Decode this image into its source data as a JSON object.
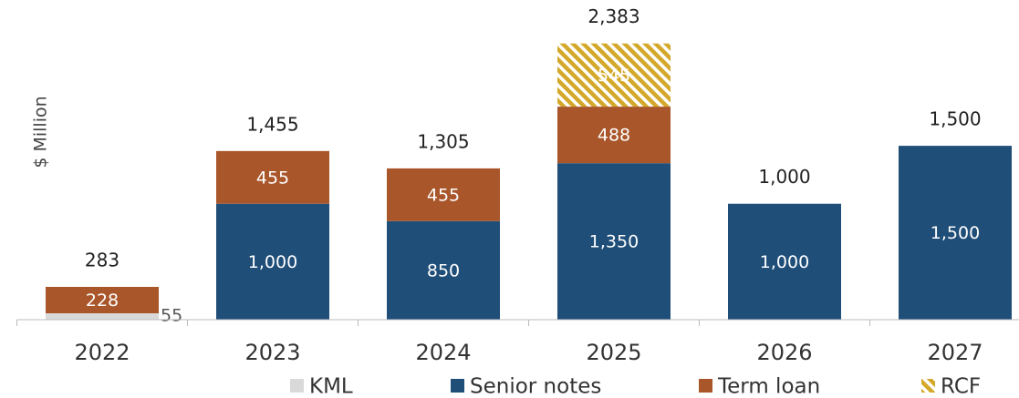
{
  "chart_data": {
    "type": "stacked_bar",
    "ylabel": "$ Million",
    "categories": [
      "2022",
      "2023",
      "2024",
      "2025",
      "2026",
      "2027"
    ],
    "series": [
      {
        "name": "KML",
        "color": "#d9d9d9",
        "values": [
          55,
          null,
          null,
          null,
          null,
          null
        ],
        "value_labels": [
          "55",
          null,
          null,
          null,
          null,
          null
        ],
        "label_position": "outside"
      },
      {
        "name": "Senior notes",
        "color": "#1f4e79",
        "values": [
          null,
          1000,
          850,
          1350,
          1000,
          1500
        ],
        "value_labels": [
          null,
          "1,000",
          "850",
          "1,350",
          "1,000",
          "1,500"
        ]
      },
      {
        "name": "Term loan",
        "color": "#a9562a",
        "values": [
          228,
          455,
          455,
          488,
          null,
          null
        ],
        "value_labels": [
          "228",
          "455",
          "455",
          "488",
          null,
          null
        ]
      },
      {
        "name": "RCF",
        "color": "#d4a82a",
        "pattern": "hatch",
        "values": [
          null,
          null,
          null,
          545,
          null,
          null
        ],
        "value_labels": [
          null,
          null,
          null,
          "545",
          null,
          null
        ]
      }
    ],
    "totals": [
      283,
      1455,
      1305,
      2383,
      1000,
      1500
    ],
    "total_labels": [
      "283",
      "1,455",
      "1,305",
      "2,383",
      "1,000",
      "1,500"
    ],
    "ylim": [
      0,
      2750
    ]
  }
}
